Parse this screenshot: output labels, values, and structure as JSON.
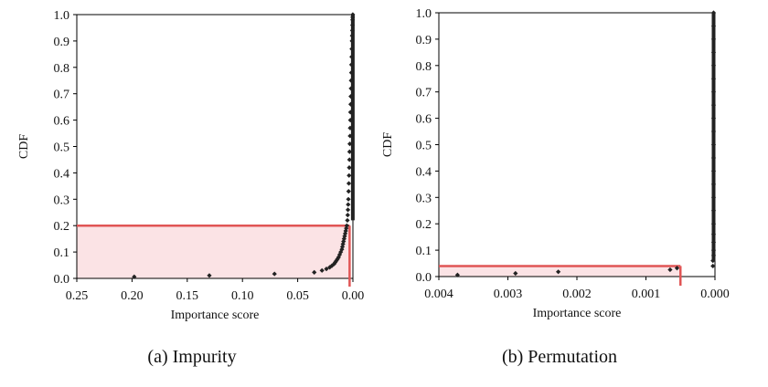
{
  "chart_data": [
    {
      "type": "scatter",
      "panel_caption": "(a)  Impurity",
      "xlabel": "Importance score",
      "ylabel": "CDF",
      "x_reversed": true,
      "xlim": [
        0.25,
        0.0
      ],
      "ylim": [
        0.0,
        1.0
      ],
      "x_ticks": [
        0.25,
        0.2,
        0.15,
        0.1,
        0.05,
        0.0
      ],
      "x_tick_labels": [
        "0.25",
        "0.20",
        "0.15",
        "0.10",
        "0.05",
        "0.00"
      ],
      "y_ticks": [
        0.0,
        0.1,
        0.2,
        0.3,
        0.4,
        0.5,
        0.6,
        0.7,
        0.8,
        0.9,
        1.0
      ],
      "y_tick_labels": [
        "0.0",
        "0.1",
        "0.2",
        "0.3",
        "0.4",
        "0.5",
        "0.6",
        "0.7",
        "0.8",
        "0.9",
        "1.0"
      ],
      "highlight": {
        "x_threshold": 0.003,
        "cdf_level": 0.2,
        "color": "#e05555",
        "fill": "#fbe3e5"
      },
      "marker_color": "#222222",
      "series": [
        {
          "points": [
            [
              0.198,
              0.006
            ],
            [
              0.13,
              0.011
            ],
            [
              0.071,
              0.017
            ],
            [
              0.035,
              0.023
            ],
            [
              0.028,
              0.03
            ],
            [
              0.024,
              0.036
            ],
            [
              0.021,
              0.042
            ],
            [
              0.019,
              0.048
            ],
            [
              0.017,
              0.055
            ],
            [
              0.016,
              0.061
            ],
            [
              0.015,
              0.067
            ],
            [
              0.014,
              0.073
            ],
            [
              0.013,
              0.08
            ],
            [
              0.012,
              0.09
            ],
            [
              0.011,
              0.1
            ],
            [
              0.01,
              0.11
            ],
            [
              0.0095,
              0.12
            ],
            [
              0.009,
              0.13
            ],
            [
              0.0085,
              0.14
            ],
            [
              0.008,
              0.15
            ],
            [
              0.0075,
              0.16
            ],
            [
              0.007,
              0.17
            ],
            [
              0.0065,
              0.18
            ],
            [
              0.006,
              0.19
            ],
            [
              0.0055,
              0.2
            ],
            [
              0.005,
              0.22
            ],
            [
              0.0047,
              0.24
            ],
            [
              0.0045,
              0.26
            ],
            [
              0.0043,
              0.28
            ],
            [
              0.0041,
              0.3
            ],
            [
              0.0039,
              0.33
            ],
            [
              0.0037,
              0.36
            ],
            [
              0.0035,
              0.39
            ],
            [
              0.0033,
              0.42
            ],
            [
              0.0031,
              0.45
            ],
            [
              0.003,
              0.48
            ],
            [
              0.0028,
              0.51
            ],
            [
              0.0026,
              0.54
            ],
            [
              0.0025,
              0.57
            ],
            [
              0.0023,
              0.6
            ],
            [
              0.0022,
              0.63
            ],
            [
              0.002,
              0.66
            ],
            [
              0.0019,
              0.69
            ],
            [
              0.0017,
              0.72
            ],
            [
              0.0016,
              0.75
            ],
            [
              0.0014,
              0.78
            ],
            [
              0.0013,
              0.81
            ],
            [
              0.0011,
              0.84
            ],
            [
              0.001,
              0.87
            ],
            [
              0.0008,
              0.9
            ],
            [
              0.0007,
              0.92
            ],
            [
              0.0005,
              0.94
            ],
            [
              0.0004,
              0.96
            ],
            [
              0.0003,
              0.98
            ],
            [
              0.0002,
              0.99
            ],
            [
              0.0001,
              1.0
            ]
          ]
        }
      ]
    },
    {
      "type": "scatter",
      "panel_caption": "(b)  Permutation",
      "xlabel": "Importance score",
      "ylabel": "CDF",
      "x_reversed": true,
      "xlim": [
        0.004,
        0.0
      ],
      "ylim": [
        0.0,
        1.0
      ],
      "x_ticks": [
        0.004,
        0.003,
        0.002,
        0.001,
        0.0
      ],
      "x_tick_labels": [
        "0.004",
        "0.003",
        "0.002",
        "0.001",
        "0.000"
      ],
      "y_ticks": [
        0.0,
        0.1,
        0.2,
        0.3,
        0.4,
        0.5,
        0.6,
        0.7,
        0.8,
        0.9,
        1.0
      ],
      "y_tick_labels": [
        "0.0",
        "0.1",
        "0.2",
        "0.3",
        "0.4",
        "0.5",
        "0.6",
        "0.7",
        "0.8",
        "0.9",
        "1.0"
      ],
      "highlight": {
        "x_threshold": 0.0005,
        "cdf_level": 0.04,
        "color": "#e05555",
        "fill": "#fbe3e5"
      },
      "marker_color": "#222222",
      "series": [
        {
          "points": [
            [
              0.00373,
              0.006
            ],
            [
              0.00289,
              0.012
            ],
            [
              0.00227,
              0.018
            ],
            [
              0.00065,
              0.026
            ],
            [
              0.00055,
              0.032
            ],
            [
              3e-05,
              0.04
            ],
            [
              3e-05,
              0.06
            ],
            [
              2e-05,
              0.08
            ],
            [
              2e-05,
              0.1
            ],
            [
              2e-05,
              0.13
            ],
            [
              2e-05,
              0.16
            ],
            [
              2e-05,
              0.2
            ],
            [
              2e-05,
              0.25
            ],
            [
              2e-05,
              0.3
            ],
            [
              2e-05,
              0.35
            ],
            [
              2e-05,
              0.4
            ],
            [
              2e-05,
              0.45
            ],
            [
              2e-05,
              0.5
            ],
            [
              2e-05,
              0.55
            ],
            [
              2e-05,
              0.6
            ],
            [
              2e-05,
              0.65
            ],
            [
              2e-05,
              0.7
            ],
            [
              2e-05,
              0.75
            ],
            [
              2e-05,
              0.8
            ],
            [
              2e-05,
              0.85
            ],
            [
              2e-05,
              0.9
            ],
            [
              2e-05,
              0.95
            ],
            [
              2e-05,
              1.0
            ]
          ]
        }
      ]
    }
  ]
}
